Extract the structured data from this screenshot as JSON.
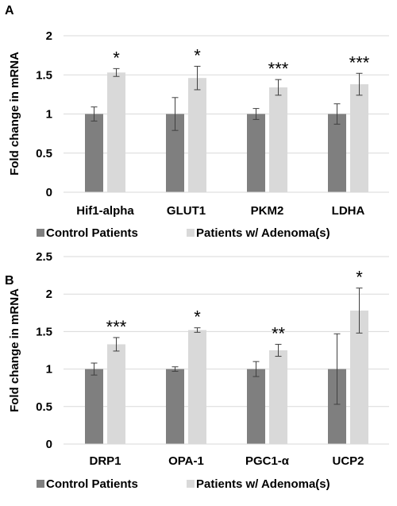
{
  "colors": {
    "control": "#7f7f7f",
    "adenoma": "#d9d9d9",
    "axis": "#d9d9d9",
    "grid": "#d9d9d9",
    "text": "#000000",
    "errorbar": "#404040"
  },
  "chart_data": [
    {
      "panel": "A",
      "type": "bar",
      "ylabel": "Fold change in mRNA",
      "xlabel": "",
      "ylim": [
        0,
        2
      ],
      "yticks": [
        "0",
        "0.5",
        "1",
        "1.5",
        "2"
      ],
      "grid": true,
      "legend_position": "bottom",
      "categories": [
        "Hif1-alpha",
        "GLUT1",
        "PKM2",
        "LDHA"
      ],
      "series": [
        {
          "name": "Control Patients",
          "values": [
            1.0,
            1.0,
            1.0,
            1.0
          ],
          "errors": [
            0.09,
            0.21,
            0.07,
            0.13
          ]
        },
        {
          "name": "Patients w/ Adenoma(s)",
          "values": [
            1.53,
            1.46,
            1.34,
            1.38
          ],
          "errors": [
            0.05,
            0.15,
            0.1,
            0.14
          ]
        }
      ],
      "significance": [
        "*",
        "*",
        "***",
        "***"
      ]
    },
    {
      "panel": "B",
      "type": "bar",
      "ylabel": "Fold change in mRNA",
      "xlabel": "",
      "ylim": [
        0,
        2.5
      ],
      "yticks": [
        "0",
        "0.5",
        "1",
        "1.5",
        "2",
        "2.5"
      ],
      "grid": true,
      "legend_position": "bottom",
      "categories": [
        "DRP1",
        "OPA-1",
        "PGC1-α",
        "UCP2"
      ],
      "series": [
        {
          "name": "Control Patients",
          "values": [
            1.0,
            1.0,
            1.0,
            1.0
          ],
          "errors": [
            0.08,
            0.03,
            0.1,
            0.47
          ]
        },
        {
          "name": "Patients w/ Adenoma(s)",
          "values": [
            1.33,
            1.52,
            1.25,
            1.78
          ],
          "errors": [
            0.09,
            0.03,
            0.08,
            0.3
          ]
        }
      ],
      "significance": [
        "***",
        "*",
        "**",
        "*"
      ]
    }
  ]
}
